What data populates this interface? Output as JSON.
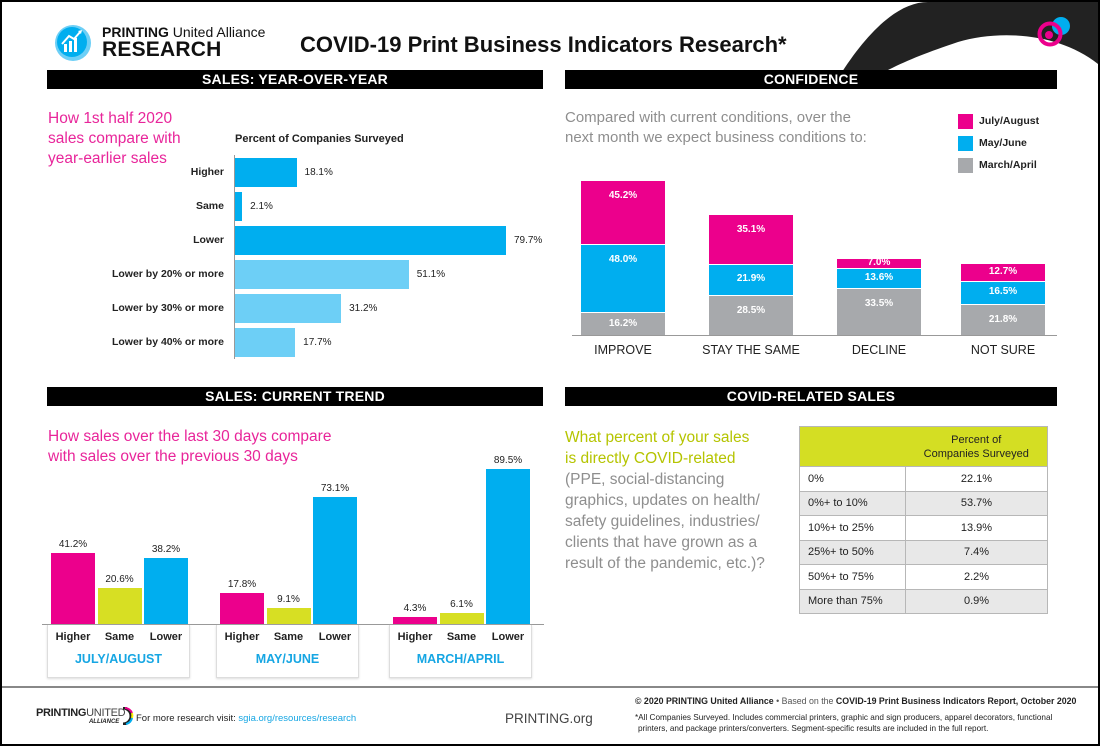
{
  "header": {
    "logo_line1_bold": "PRINTING",
    "logo_line1_rest": " United Alliance",
    "logo_line2": "RESEARCH",
    "title": "COVID-19 Print Business Indicators Research*"
  },
  "colors": {
    "pink": "#ec008c",
    "blue": "#00aeef",
    "light_blue": "#6dcff6",
    "gray": "#a7a9ac",
    "lime": "#d7df23",
    "label_blue": "#16a6e3"
  },
  "sections": {
    "yoy": "SALES: YEAR-OVER-YEAR",
    "confidence": "CONFIDENCE",
    "trend": "SALES: CURRENT TREND",
    "covid": "COVID-RELATED SALES"
  },
  "chart_data": [
    {
      "type": "bar",
      "orientation": "horizontal",
      "title": "SALES: YEAR-OVER-YEAR",
      "question": "How 1st half 2020 sales compare with year-earlier sales",
      "question_lines": [
        "How 1st half 2020",
        "sales compare with",
        "year-earlier sales"
      ],
      "xlabel": "Percent of Companies Surveyed",
      "categories": [
        "Higher",
        "Same",
        "Lower",
        "Lower by 20% or more",
        "Lower by 30% or more",
        "Lower by 40% or more"
      ],
      "values": [
        18.1,
        2.1,
        79.7,
        51.1,
        31.2,
        17.7
      ],
      "labels": [
        "18.1%",
        "2.1%",
        "79.7%",
        "51.1%",
        "31.2%",
        "17.7%"
      ],
      "bar_colors": [
        "blue",
        "blue",
        "blue",
        "light_blue",
        "light_blue",
        "light_blue"
      ]
    },
    {
      "type": "bar",
      "stacked": true,
      "title": "CONFIDENCE",
      "question_lines": [
        "Compared with current conditions, over the",
        "next month we expect business conditions to:"
      ],
      "categories": [
        "IMPROVE",
        "STAY THE SAME",
        "DECLINE",
        "NOT SURE"
      ],
      "legend_position": "top-right",
      "series": [
        {
          "name": "March/April",
          "color": "gray",
          "values": [
            16.2,
            28.5,
            33.5,
            21.8
          ],
          "labels": [
            "16.2%",
            "28.5%",
            "33.5%",
            "21.8%"
          ]
        },
        {
          "name": "May/June",
          "color": "blue",
          "values": [
            48.0,
            21.9,
            13.6,
            16.5
          ],
          "labels": [
            "48.0%",
            "21.9%",
            "13.6%",
            "16.5%"
          ]
        },
        {
          "name": "July/August",
          "color": "pink",
          "values": [
            45.2,
            35.1,
            7.0,
            12.7
          ],
          "labels": [
            "45.2%",
            "35.1%",
            "7.0%",
            "12.7%"
          ]
        }
      ],
      "legend": [
        "July/August",
        "May/June",
        "March/April"
      ]
    },
    {
      "type": "bar",
      "grouped": true,
      "title": "SALES: CURRENT TREND",
      "question_lines": [
        "How sales over the last 30 days compare",
        "with sales over the previous 30 days"
      ],
      "bar_categories": [
        "Higher",
        "Same",
        "Lower"
      ],
      "groups": [
        {
          "name": "JULY/AUGUST",
          "values": [
            41.2,
            20.6,
            38.2
          ],
          "labels": [
            "41.2%",
            "20.6%",
            "38.2%"
          ]
        },
        {
          "name": "MAY/JUNE",
          "values": [
            17.8,
            9.1,
            73.1
          ],
          "labels": [
            "17.8%",
            "9.1%",
            "73.1%"
          ]
        },
        {
          "name": "MARCH/APRIL",
          "values": [
            4.3,
            6.1,
            89.5
          ],
          "labels": [
            "4.3%",
            "6.1%",
            "89.5%"
          ]
        }
      ],
      "bar_colors": [
        "pink",
        "lime",
        "blue"
      ]
    },
    {
      "type": "table",
      "title": "COVID-RELATED SALES",
      "question_lines_green": [
        "What percent of your sales",
        "is directly COVID-related"
      ],
      "question_lines_gray": [
        "(PPE, social-distancing",
        "graphics, updates on health/",
        "safety guidelines, industries/",
        "clients that have grown as a",
        "result of the pandemic, etc.)?"
      ],
      "header_line1": "Percent of",
      "header_line2": "Companies Surveyed",
      "rows": [
        {
          "range": "0%",
          "value": "22.1%"
        },
        {
          "range": "0%+ to 10%",
          "value": "53.7%"
        },
        {
          "range": "10%+ to 25%",
          "value": "13.9%"
        },
        {
          "range": "25%+ to 50%",
          "value": "7.4%"
        },
        {
          "range": "50%+ to 75%",
          "value": "2.2%"
        },
        {
          "range": "More than 75%",
          "value": "0.9%"
        }
      ]
    }
  ],
  "footer": {
    "logo_bold": "PRINTING",
    "logo_light": "UNITED",
    "logo_sub": "ALLIANCE",
    "research_prefix": "For more research visit: ",
    "research_link": "sgia.org/resources/research",
    "site": "PRINTING.org",
    "copyright_bold1": "© 2020 PRINTING United Alliance",
    "copyright_mid": " • Based on the ",
    "copyright_bold2": "COVID-19 Print Business Indicators Report, October 2020",
    "note_line1": "*All Companies Surveyed. Includes commercial printers, graphic and sign producers, apparel decorators, functional",
    "note_line2": "printers, and package printers/converters. Segment-specific results are included in the full report."
  }
}
